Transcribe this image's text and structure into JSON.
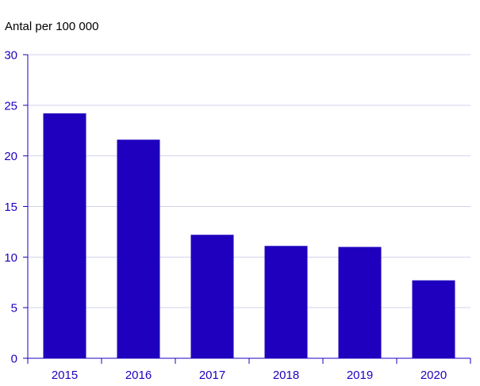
{
  "chart_data": {
    "type": "bar",
    "ylabel": "Antal per 100 000",
    "categories": [
      "2015",
      "2016",
      "2017",
      "2018",
      "2019",
      "2020"
    ],
    "values": [
      24.2,
      21.6,
      12.2,
      11.1,
      11.0,
      7.7
    ],
    "ylim": [
      0,
      30
    ],
    "yticks": [
      0,
      5,
      10,
      15,
      20,
      25,
      30
    ],
    "grid": true,
    "colors": {
      "bar": "#1e00be",
      "text": "#1e00be",
      "grid": "#d2d2ea",
      "axis": "#1e00be"
    }
  }
}
